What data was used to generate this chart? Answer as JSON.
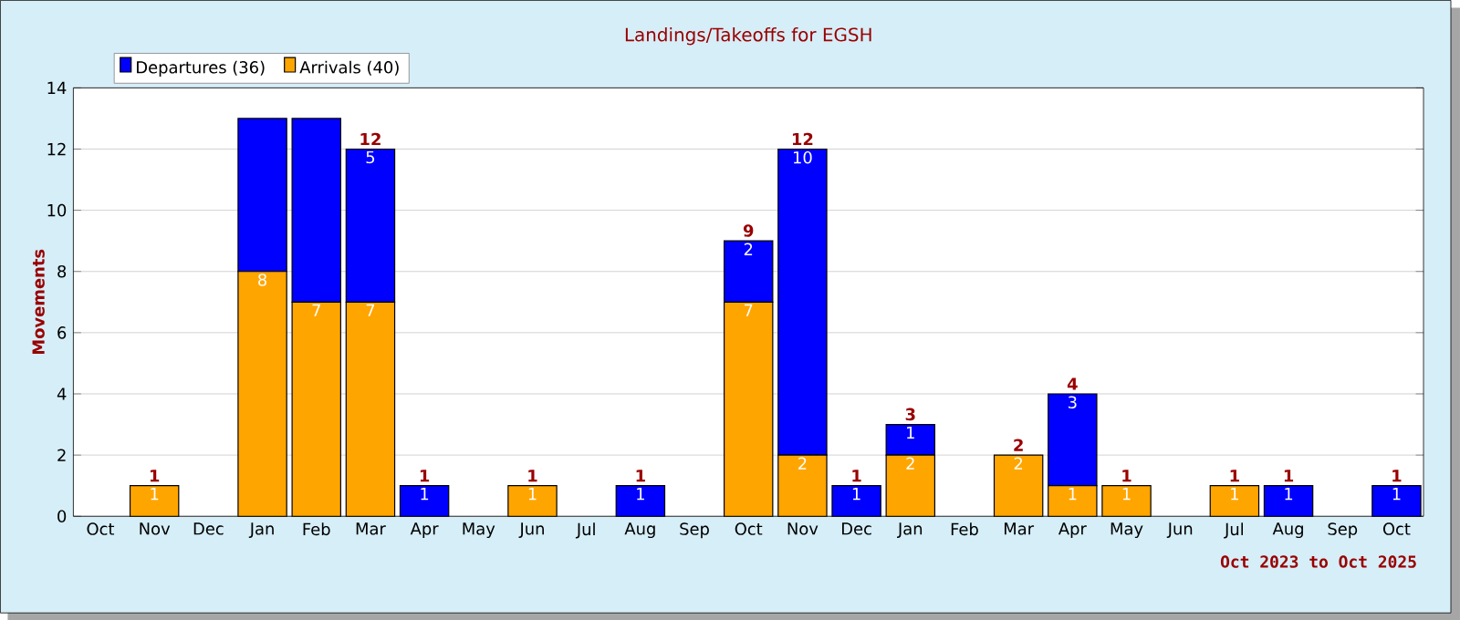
{
  "chart_data": {
    "type": "bar",
    "stacked": true,
    "title": "Landings/Takeoffs for EGSH",
    "ylabel": "Movements",
    "categories": [
      "Oct",
      "Nov",
      "Dec",
      "Jan",
      "Feb",
      "Mar",
      "Apr",
      "May",
      "Jun",
      "Jul",
      "Aug",
      "Sep",
      "Oct",
      "Nov",
      "Dec",
      "Jan",
      "Feb",
      "Mar",
      "Apr",
      "May",
      "Jun",
      "Jul",
      "Aug",
      "Sep",
      "Oct"
    ],
    "series": [
      {
        "name": "Arrivals (40)",
        "color": "#ffa500",
        "values": [
          0,
          1,
          0,
          8,
          7,
          7,
          0,
          0,
          1,
          0,
          0,
          0,
          7,
          2,
          0,
          2,
          0,
          2,
          1,
          1,
          0,
          1,
          0,
          0,
          0
        ],
        "value_labels": [
          null,
          "1",
          null,
          "8",
          "7",
          "7",
          null,
          null,
          "1",
          null,
          null,
          null,
          "7",
          "2",
          null,
          "2",
          null,
          "2",
          "1",
          "1",
          null,
          "1",
          null,
          null,
          null
        ]
      },
      {
        "name": "Departures (36)",
        "color": "#0000ff",
        "values": [
          0,
          0,
          0,
          5,
          6,
          5,
          1,
          0,
          0,
          0,
          1,
          0,
          2,
          10,
          1,
          1,
          0,
          0,
          3,
          0,
          0,
          0,
          1,
          0,
          1
        ],
        "value_labels": [
          null,
          null,
          null,
          null,
          null,
          "5",
          "1",
          null,
          null,
          null,
          "1",
          null,
          "2",
          "10",
          "1",
          "1",
          null,
          null,
          "3",
          null,
          null,
          null,
          "1",
          null,
          "1"
        ]
      }
    ],
    "totals": [
      null,
      "1",
      null,
      null,
      null,
      "12",
      "1",
      null,
      "1",
      null,
      "1",
      null,
      "9",
      "12",
      "1",
      "3",
      null,
      "2",
      "4",
      "1",
      null,
      "1",
      "1",
      null,
      "1"
    ],
    "ylim": [
      0,
      14
    ],
    "yticks": [
      0,
      2,
      4,
      6,
      8,
      10,
      12,
      14
    ],
    "grid": "y",
    "legend": "top left",
    "annotations": [
      "Oct 2023 to Oct 2025"
    ]
  }
}
